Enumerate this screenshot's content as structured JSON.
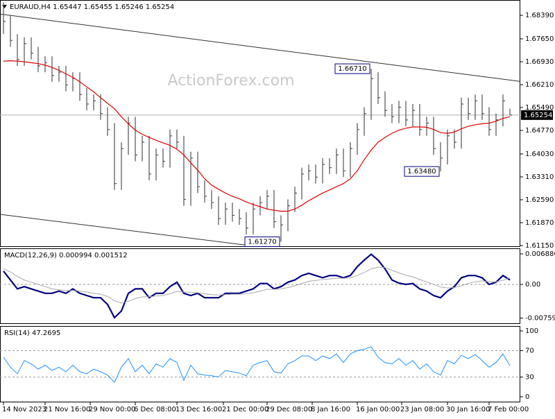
{
  "chart_data": [
    {
      "type": "ohlc",
      "title": "EURAUD,H4 1.65447 1.65455 1.65246 1.65254",
      "watermark": "ActionForex.com",
      "color": "#505050",
      "xlim": [
        -0.5,
        74.5
      ],
      "ylim": [
        1.61106,
        1.68871
      ],
      "yticks": [
        {
          "value": 1.6839,
          "label": "1.68390"
        },
        {
          "value": 1.6765,
          "label": "1.67650"
        },
        {
          "value": 1.6693,
          "label": "1.66930"
        },
        {
          "value": 1.6621,
          "label": "1.66210"
        },
        {
          "value": 1.6549,
          "label": "1.65490"
        },
        {
          "value": 1.6477,
          "label": "1.64770"
        },
        {
          "value": 1.6403,
          "label": "1.64030"
        },
        {
          "value": 1.6331,
          "label": "1.63310"
        },
        {
          "value": 1.6259,
          "label": "1.62590"
        },
        {
          "value": 1.6187,
          "label": "1.61870"
        },
        {
          "value": 1.6115,
          "label": "1.61150"
        }
      ],
      "high": [
        1.688,
        1.684,
        1.678,
        1.677,
        1.677,
        1.674,
        1.671,
        1.671,
        1.668,
        1.668,
        1.666,
        1.666,
        1.661,
        1.659,
        1.659,
        1.655,
        1.65,
        1.644,
        1.652,
        1.652,
        1.646,
        1.646,
        1.642,
        1.642,
        1.648,
        1.648,
        1.646,
        1.641,
        1.641,
        1.632,
        1.629,
        1.627,
        1.625,
        1.625,
        1.623,
        1.622,
        1.625,
        1.627,
        1.629,
        1.629,
        1.621,
        1.626,
        1.63,
        1.636,
        1.637,
        1.637,
        1.639,
        1.639,
        1.642,
        1.642,
        1.644,
        1.65,
        1.655,
        1.6671,
        1.666,
        1.66,
        1.656,
        1.657,
        1.657,
        1.656,
        1.656,
        1.652,
        1.652,
        1.644,
        1.648,
        1.648,
        1.658,
        1.658,
        1.659,
        1.659,
        1.655,
        1.653,
        1.659,
        1.65455
      ],
      "low": [
        1.678,
        1.674,
        1.668,
        1.668,
        1.67,
        1.666,
        1.666,
        1.663,
        1.663,
        1.66,
        1.66,
        1.657,
        1.654,
        1.654,
        1.651,
        1.646,
        1.629,
        1.629,
        1.64,
        1.638,
        1.638,
        1.632,
        1.632,
        1.636,
        1.636,
        1.642,
        1.624,
        1.624,
        1.628,
        1.625,
        1.623,
        1.618,
        1.618,
        1.619,
        1.618,
        1.615,
        1.615,
        1.621,
        1.623,
        1.617,
        1.6127,
        1.616,
        1.622,
        1.626,
        1.632,
        1.631,
        1.631,
        1.634,
        1.634,
        1.633,
        1.633,
        1.64,
        1.646,
        1.651,
        1.656,
        1.652,
        1.65,
        1.65,
        1.649,
        1.649,
        1.646,
        1.646,
        1.64,
        1.6348,
        1.637,
        1.642,
        1.642,
        1.651,
        1.651,
        1.651,
        1.646,
        1.646,
        1.649,
        1.65246
      ],
      "close": [
        1.682,
        1.676,
        1.67,
        1.675,
        1.672,
        1.668,
        1.669,
        1.665,
        1.666,
        1.662,
        1.664,
        1.659,
        1.656,
        1.657,
        1.653,
        1.648,
        1.631,
        1.642,
        1.65,
        1.64,
        1.644,
        1.634,
        1.64,
        1.638,
        1.646,
        1.644,
        1.626,
        1.639,
        1.63,
        1.627,
        1.625,
        1.62,
        1.623,
        1.621,
        1.62,
        1.617,
        1.623,
        1.625,
        1.627,
        1.619,
        1.618,
        1.624,
        1.628,
        1.634,
        1.635,
        1.633,
        1.637,
        1.636,
        1.64,
        1.635,
        1.642,
        1.648,
        1.653,
        1.664,
        1.658,
        1.654,
        1.652,
        1.655,
        1.651,
        1.654,
        1.648,
        1.65,
        1.642,
        1.639,
        1.646,
        1.644,
        1.656,
        1.653,
        1.657,
        1.653,
        1.648,
        1.651,
        1.657,
        1.65254
      ],
      "overlays": [
        {
          "type": "line",
          "color": "#e00000",
          "values": [
            1.6695,
            1.6696,
            1.6695,
            1.6693,
            1.669,
            1.6687,
            1.6682,
            1.6675,
            1.6666,
            1.6655,
            1.6644,
            1.663,
            1.6614,
            1.6598,
            1.658,
            1.6562,
            1.6545,
            1.652,
            1.6498,
            1.6478,
            1.6465,
            1.6455,
            1.6446,
            1.6438,
            1.643,
            1.6418,
            1.64,
            1.6375,
            1.6352,
            1.6325,
            1.6305,
            1.6292,
            1.628,
            1.627,
            1.6262,
            1.6252,
            1.6244,
            1.6237,
            1.623,
            1.6226,
            1.6223,
            1.6223,
            1.623,
            1.6242,
            1.6256,
            1.6268,
            1.628,
            1.629,
            1.63,
            1.631,
            1.6325,
            1.635,
            1.6385,
            1.6415,
            1.644,
            1.6455,
            1.6468,
            1.6478,
            1.6484,
            1.6488,
            1.6488,
            1.6487,
            1.648,
            1.647,
            1.6468,
            1.6472,
            1.6482,
            1.649,
            1.6495,
            1.6498,
            1.65,
            1.6506,
            1.6515,
            1.652
          ]
        }
      ],
      "trendlines": [
        {
          "color": "#303030",
          "x": [
            -0.5,
            74.5
          ],
          "y": [
            1.6843,
            1.6631
          ]
        },
        {
          "color": "#303030",
          "x": [
            -0.5,
            35.5
          ],
          "y": [
            1.6213,
            1.6115
          ]
        }
      ],
      "annotations": [
        {
          "label": "1.66710",
          "value": 1.6671,
          "x": 53
        },
        {
          "label": "1.63480",
          "value": 1.6348,
          "x": 63
        },
        {
          "label": "1.61270",
          "value": 1.6127,
          "x": 40
        }
      ],
      "last_price": {
        "value": 1.65254,
        "label": "1.65254"
      }
    },
    {
      "type": "macd",
      "title": "MACD(12,26,9) 0.000994 0.001512",
      "xlim": [
        -0.5,
        74.5
      ],
      "ylim": [
        -0.00892,
        0.008138
      ],
      "yticks": [
        0.006886,
        {
          "value": 0,
          "label": "0.00"
        },
        -0.007591
      ],
      "levels": [
        0
      ],
      "series": [
        {
          "color": "#000080",
          "values": [
            0.003,
            0.001,
            -0.001,
            -0.0005,
            -0.001,
            -0.0015,
            -0.002,
            -0.002,
            -0.0015,
            -0.002,
            -0.001,
            -0.002,
            -0.0025,
            -0.003,
            -0.003,
            -0.0045,
            -0.0075,
            -0.006,
            -0.002,
            -0.001,
            -0.001,
            -0.003,
            -0.002,
            -0.002,
            -0.0005,
            0.0005,
            -0.002,
            -0.0025,
            -0.002,
            -0.003,
            -0.003,
            -0.003,
            -0.002,
            -0.002,
            -0.002,
            -0.0015,
            -0.001,
            0.0002,
            0.0002,
            -0.001,
            -0.0005,
            0.0005,
            0.001,
            0.002,
            0.0025,
            0.002,
            0.0015,
            0.002,
            0.002,
            0.0015,
            0.002,
            0.004,
            0.0055,
            0.0068,
            0.0055,
            0.0035,
            0.001,
            0.0003,
            0,
            0.0002,
            -0.001,
            -0.0015,
            -0.0025,
            -0.003,
            -0.0015,
            -0.0005,
            0.0015,
            0.002,
            0.002,
            0.0015,
            0,
            0.0005,
            0.002,
            0.000994
          ]
        },
        {
          "color": "#a8a8a8",
          "values": [
            0.0035,
            0.0028,
            0.0018,
            0.001,
            0.0005,
            0,
            -0.0005,
            -0.001,
            -0.0012,
            -0.0014,
            -0.0014,
            -0.0015,
            -0.0017,
            -0.002,
            -0.0022,
            -0.0027,
            -0.0037,
            -0.0042,
            -0.0038,
            -0.0032,
            -0.0028,
            -0.0028,
            -0.0026,
            -0.0025,
            -0.0021,
            -0.0016,
            -0.0017,
            -0.0018,
            -0.0019,
            -0.0021,
            -0.0023,
            -0.0024,
            -0.0023,
            -0.0022,
            -0.0022,
            -0.0021,
            -0.0019,
            -0.0015,
            -0.0011,
            -0.0011,
            -0.001,
            -0.0007,
            -0.0003,
            0.0002,
            0.0007,
            0.0009,
            0.0011,
            0.0012,
            0.0014,
            0.0014,
            0.0015,
            0.002,
            0.0027,
            0.0035,
            0.0039,
            0.0038,
            0.0032,
            0.0026,
            0.0021,
            0.0017,
            0.0011,
            0.0006,
            0,
            -0.0006,
            -0.0008,
            -0.0007,
            -0.0003,
            0.0002,
            0.0006,
            0.0008,
            0.0006,
            0.0006,
            0.0009,
            0.001512
          ]
        }
      ]
    },
    {
      "type": "rsi",
      "title": "RSI(14) 47.2695",
      "xlim": [
        -0.5,
        74.5
      ],
      "ylim": [
        -8.4,
        107.4
      ],
      "yticks": [
        100,
        70,
        30,
        0
      ],
      "levels": [
        70,
        30
      ],
      "xticks": [
        {
          "value": 0,
          "label": "14 Nov 2023"
        },
        {
          "value": 6,
          "label": "21 Nov 16:00"
        },
        {
          "value": 12.5,
          "label": "29 Nov 00:00"
        },
        {
          "value": 19,
          "label": "6 Dec 08:00"
        },
        {
          "value": 25,
          "label": "13 Dec 16:00"
        },
        {
          "value": 31.7,
          "label": "21 Dec 00:00"
        },
        {
          "value": 38,
          "label": "29 Dec 08:00"
        },
        {
          "value": 44.5,
          "label": "8 Jan 16:00"
        },
        {
          "value": 51,
          "label": "16 Jan 00:00"
        },
        {
          "value": 57.4,
          "label": "23 Jan 08:00"
        },
        {
          "value": 64,
          "label": "30 Jan 16:00"
        },
        {
          "value": 70,
          "label": "7 Feb 00:00"
        }
      ],
      "series": [
        {
          "color": "#1e90ff",
          "values": [
            60,
            45,
            35,
            55,
            50,
            42,
            48,
            40,
            45,
            38,
            48,
            38,
            35,
            42,
            38,
            33,
            22,
            45,
            58,
            38,
            48,
            35,
            50,
            45,
            58,
            52,
            25,
            48,
            35,
            33,
            32,
            30,
            40,
            38,
            36,
            32,
            48,
            52,
            55,
            38,
            36,
            50,
            55,
            62,
            62,
            55,
            62,
            58,
            65,
            52,
            65,
            70,
            72,
            76,
            60,
            52,
            50,
            58,
            48,
            55,
            42,
            50,
            38,
            33,
            55,
            50,
            63,
            58,
            64,
            55,
            45,
            52,
            65,
            47.2695
          ]
        }
      ]
    }
  ]
}
